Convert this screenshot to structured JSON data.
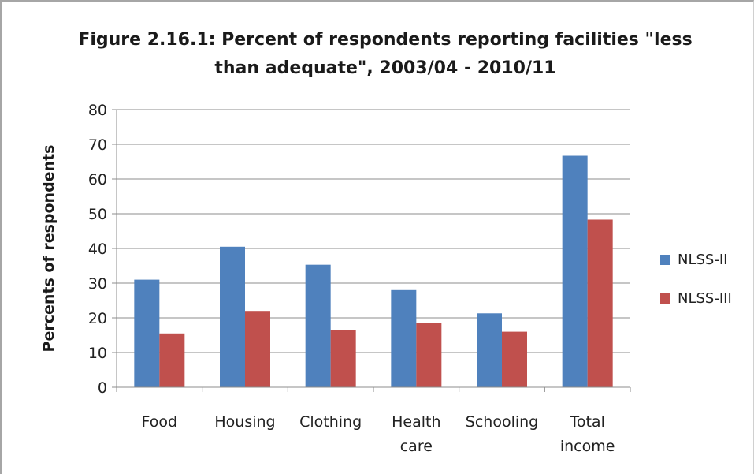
{
  "chart_data": {
    "type": "bar",
    "title_lines": [
      "Figure 2.16.1: Percent of respondents reporting facilities \"less",
      "than adequate\", 2003/04 - 2010/11"
    ],
    "ylabel": "Percents of respondents",
    "xlabel": "",
    "ylim": [
      0,
      80
    ],
    "yticks": [
      0,
      10,
      20,
      30,
      40,
      50,
      60,
      70,
      80
    ],
    "grid": true,
    "legend_position": "right",
    "categories": [
      [
        "Food"
      ],
      [
        "Housing"
      ],
      [
        "Clothing"
      ],
      [
        "Health",
        "care"
      ],
      [
        "Schooling"
      ],
      [
        "Total",
        "income"
      ]
    ],
    "series": [
      {
        "name": "NLSS-II",
        "color": "#4f81bd",
        "values": [
          31,
          40.5,
          35.3,
          28,
          21.3,
          66.7
        ]
      },
      {
        "name": "NLSS-III",
        "color": "#c0504d",
        "values": [
          15.5,
          22,
          16.4,
          18.5,
          16,
          48.3
        ]
      }
    ]
  }
}
